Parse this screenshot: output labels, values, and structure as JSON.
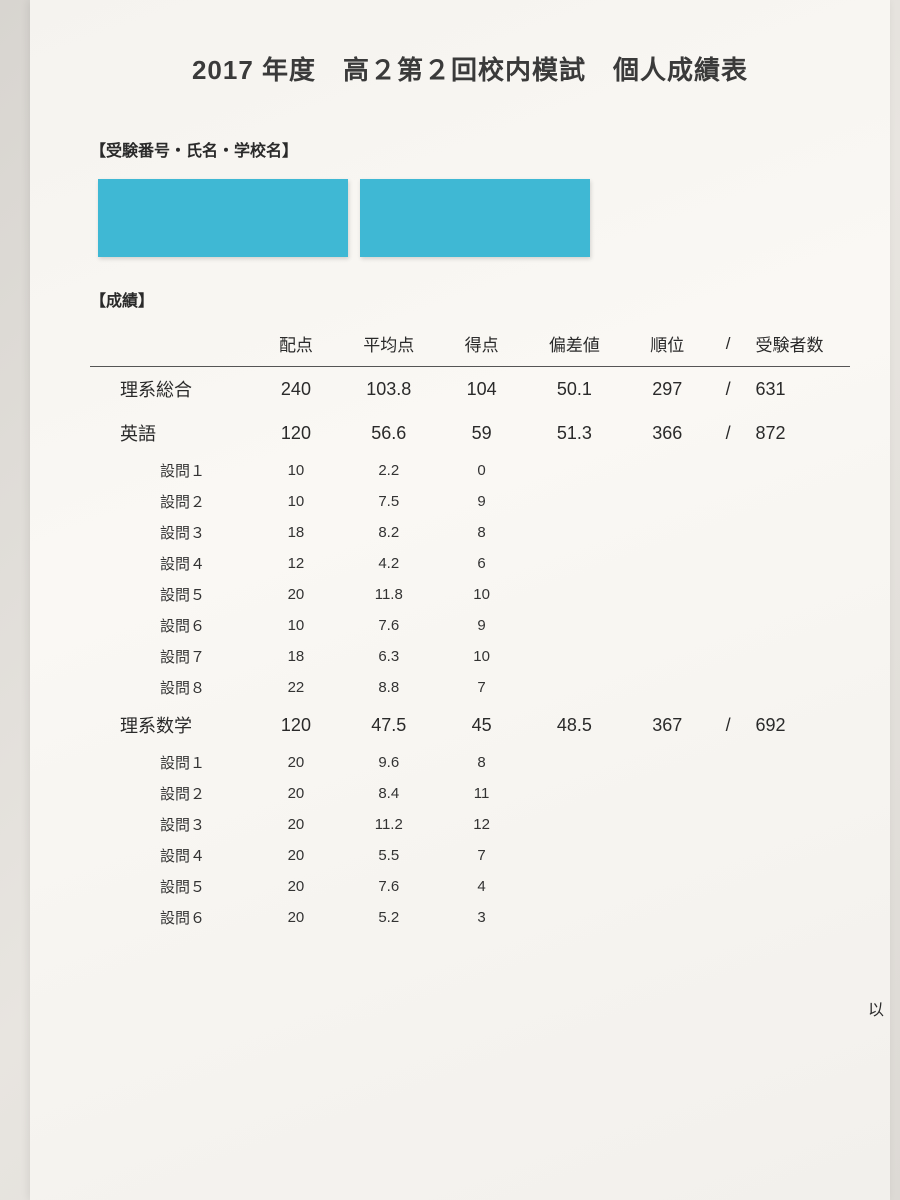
{
  "title": "2017 年度　高２第２回校内模試　個人成績表",
  "section_id_label": "【受験番号・氏名・学校名】",
  "section_scores_label": "【成績】",
  "redaction_color": "#3fb8d4",
  "columns": {
    "label": "",
    "max": "配点",
    "avg": "平均点",
    "score": "得点",
    "dev": "偏差値",
    "rank": "順位",
    "slash": "/",
    "total": "受験者数"
  },
  "rows": [
    {
      "type": "main",
      "label": "理系総合",
      "max": "240",
      "avg": "103.8",
      "score": "104",
      "dev": "50.1",
      "rank": "297",
      "slash": "/",
      "total": "631"
    },
    {
      "type": "main",
      "label": "英語",
      "max": "120",
      "avg": "56.6",
      "score": "59",
      "dev": "51.3",
      "rank": "366",
      "slash": "/",
      "total": "872"
    },
    {
      "type": "sub",
      "label": "設問１",
      "max": "10",
      "avg": "2.2",
      "score": "0"
    },
    {
      "type": "sub",
      "label": "設問２",
      "max": "10",
      "avg": "7.5",
      "score": "9"
    },
    {
      "type": "sub",
      "label": "設問３",
      "max": "18",
      "avg": "8.2",
      "score": "8"
    },
    {
      "type": "sub",
      "label": "設問４",
      "max": "12",
      "avg": "4.2",
      "score": "6"
    },
    {
      "type": "sub",
      "label": "設問５",
      "max": "20",
      "avg": "11.8",
      "score": "10"
    },
    {
      "type": "sub",
      "label": "設問６",
      "max": "10",
      "avg": "7.6",
      "score": "9"
    },
    {
      "type": "sub",
      "label": "設問７",
      "max": "18",
      "avg": "6.3",
      "score": "10"
    },
    {
      "type": "sub",
      "label": "設問８",
      "max": "22",
      "avg": "8.8",
      "score": "7"
    },
    {
      "type": "main",
      "label": "理系数学",
      "max": "120",
      "avg": "47.5",
      "score": "45",
      "dev": "48.5",
      "rank": "367",
      "slash": "/",
      "total": "692"
    },
    {
      "type": "sub",
      "label": "設問１",
      "max": "20",
      "avg": "9.6",
      "score": "8"
    },
    {
      "type": "sub",
      "label": "設問２",
      "max": "20",
      "avg": "8.4",
      "score": "11"
    },
    {
      "type": "sub",
      "label": "設問３",
      "max": "20",
      "avg": "11.2",
      "score": "12"
    },
    {
      "type": "sub",
      "label": "設問４",
      "max": "20",
      "avg": "5.5",
      "score": "7"
    },
    {
      "type": "sub",
      "label": "設問５",
      "max": "20",
      "avg": "7.6",
      "score": "4"
    },
    {
      "type": "sub",
      "label": "設問６",
      "max": "20",
      "avg": "5.2",
      "score": "3"
    }
  ],
  "footer_note": "以"
}
